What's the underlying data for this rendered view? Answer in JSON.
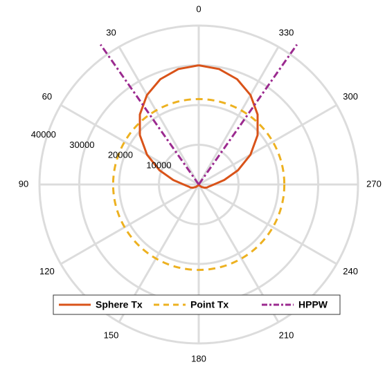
{
  "chart_data": {
    "type": "polar-line",
    "theta_direction": "counterclockwise",
    "theta_zero_location": "top",
    "theta_ticks": [
      0,
      30,
      60,
      90,
      120,
      150,
      180,
      210,
      240,
      270,
      300,
      330
    ],
    "theta_tick_labels": [
      "0",
      "30",
      "60",
      "90",
      "120",
      "150",
      "180",
      "210",
      "240",
      "270",
      "300",
      "330"
    ],
    "r_ticks": [
      10000,
      20000,
      30000,
      40000
    ],
    "r_tick_labels": [
      "10000",
      "20000",
      "30000",
      "40000"
    ],
    "rlim": [
      0,
      40000
    ],
    "r_label_angle": 75,
    "grid": true,
    "legend": {
      "position": "bottom",
      "orientation": "horizontal"
    },
    "series": [
      {
        "name": "Sphere Tx",
        "color": "#d95319",
        "style": "solid",
        "points": [
          {
            "theta": 0,
            "r": 30000
          },
          {
            "theta": 10,
            "r": 29500
          },
          {
            "theta": 20,
            "r": 28200
          },
          {
            "theta": 30,
            "r": 26000
          },
          {
            "theta": 40,
            "r": 23000
          },
          {
            "theta": 50,
            "r": 19300
          },
          {
            "theta": 60,
            "r": 15000
          },
          {
            "theta": 70,
            "r": 10500
          },
          {
            "theta": 80,
            "r": 6500
          },
          {
            "theta": 90,
            "r": 3800
          },
          {
            "theta": 100,
            "r": 2700
          },
          {
            "theta": 110,
            "r": 2200
          },
          {
            "theta": 120,
            "r": 1600
          },
          {
            "theta": 130,
            "r": 1000
          },
          {
            "theta": 140,
            "r": 400
          },
          {
            "theta": 150,
            "r": 0
          },
          {
            "theta": 210,
            "r": 0
          },
          {
            "theta": 220,
            "r": 400
          },
          {
            "theta": 230,
            "r": 1000
          },
          {
            "theta": 240,
            "r": 1600
          },
          {
            "theta": 250,
            "r": 2200
          },
          {
            "theta": 260,
            "r": 2700
          },
          {
            "theta": 270,
            "r": 3800
          },
          {
            "theta": 280,
            "r": 6500
          },
          {
            "theta": 290,
            "r": 10500
          },
          {
            "theta": 300,
            "r": 15000
          },
          {
            "theta": 310,
            "r": 19300
          },
          {
            "theta": 320,
            "r": 23000
          },
          {
            "theta": 330,
            "r": 26000
          },
          {
            "theta": 340,
            "r": 28200
          },
          {
            "theta": 350,
            "r": 29500
          },
          {
            "theta": 360,
            "r": 30000
          }
        ]
      },
      {
        "name": "Point Tx",
        "color": "#edb120",
        "style": "dashed",
        "constant_r": 21500,
        "theta_range": [
          0,
          360
        ]
      },
      {
        "name": "HPPW",
        "color": "#9b2a8f",
        "style": "dashdot",
        "segments": [
          [
            {
              "theta": 0,
              "r": 0
            },
            {
              "theta": 35,
              "r": 43000
            }
          ],
          [
            {
              "theta": 0,
              "r": 0
            },
            {
              "theta": 325,
              "r": 43000
            }
          ]
        ]
      }
    ]
  }
}
